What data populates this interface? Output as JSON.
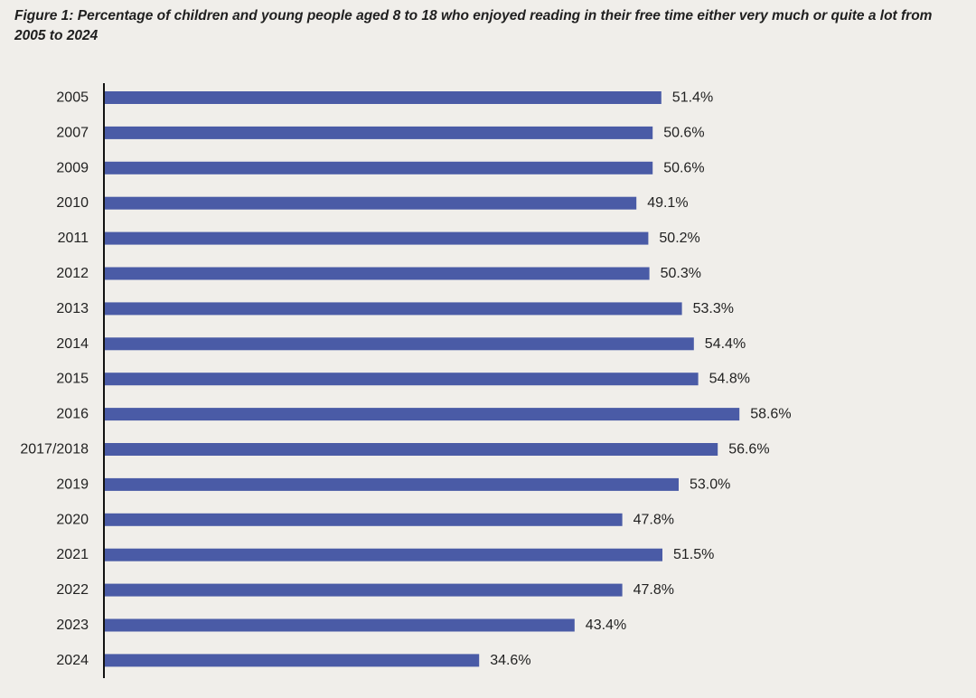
{
  "chart_data": {
    "type": "bar",
    "orientation": "horizontal",
    "title": "Figure 1: Percentage of children and young people aged 8 to 18 who enjoyed reading in their free time either very much or quite a lot from 2005 to 2024",
    "categories": [
      "2005",
      "2007",
      "2009",
      "2010",
      "2011",
      "2012",
      "2013",
      "2014",
      "2015",
      "2016",
      "2017/2018",
      "2019",
      "2020",
      "2021",
      "2022",
      "2023",
      "2024"
    ],
    "values": [
      51.4,
      50.6,
      50.6,
      49.1,
      50.2,
      50.3,
      53.3,
      54.4,
      54.8,
      58.6,
      56.6,
      53.0,
      47.8,
      51.5,
      47.8,
      43.4,
      34.6
    ],
    "data_labels": [
      "51.4%",
      "50.6%",
      "50.6%",
      "49.1%",
      "50.2%",
      "50.3%",
      "53.3%",
      "54.4%",
      "54.8%",
      "58.6%",
      "56.6%",
      "53.0%",
      "47.8%",
      "51.5%",
      "47.8%",
      "43.4%",
      "34.6%"
    ],
    "value_unit": "%",
    "xlim": [
      0,
      60
    ],
    "grid": false,
    "legend": "none",
    "bar_color": "#4a5ba6",
    "axis_color": "#111111"
  }
}
